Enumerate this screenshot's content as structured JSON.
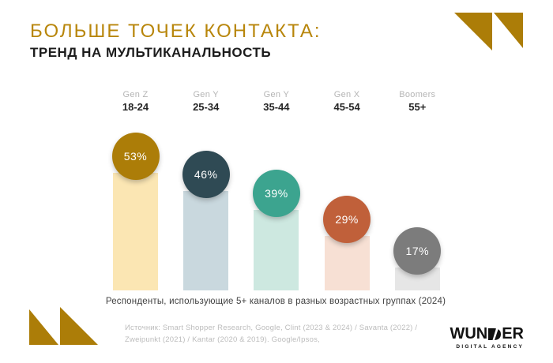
{
  "header": {
    "title": "БОЛЬШЕ ТОЧЕК КОНТАКТА:",
    "subtitle": "ТРЕНД НА МУЛЬТИКАНАЛЬНОСТЬ"
  },
  "chart_data": {
    "type": "bar",
    "title": "БОЛЬШЕ ТОЧЕК КОНТАКТА: ТРЕНД НА МУЛЬТИКАНАЛЬНОСТЬ",
    "categories": [
      "Gen Z 18-24",
      "Gen Y 25-34",
      "Gen Y 35-44",
      "Gen X 45-54",
      "Boomers 55+"
    ],
    "values": [
      53,
      46,
      39,
      29,
      17
    ],
    "unit": "%",
    "ylim": [
      0,
      60
    ],
    "grid": false,
    "legend": false,
    "columns": [
      {
        "generation": "Gen Z",
        "age": "18-24",
        "value": 53,
        "label": "53%",
        "circle_color": "#AC7D08",
        "bar_color": "#FBE6B3"
      },
      {
        "generation": "Gen Y",
        "age": "25-34",
        "value": 46,
        "label": "46%",
        "circle_color": "#2F4A54",
        "bar_color": "#C9D8DE"
      },
      {
        "generation": "Gen Y",
        "age": "35-44",
        "value": 39,
        "label": "39%",
        "circle_color": "#3CA48F",
        "bar_color": "#CDE8E0"
      },
      {
        "generation": "Gen X",
        "age": "45-54",
        "value": 29,
        "label": "29%",
        "circle_color": "#C0603A",
        "bar_color": "#F7E0D4"
      },
      {
        "generation": "Boomers",
        "age": "55+",
        "value": 17,
        "label": "17%",
        "circle_color": "#7C7C7C",
        "bar_color": "#E6E6E6"
      }
    ],
    "caption": "Респонденты, использующие 5+ каналов в разных возрастных группах (2024)"
  },
  "footer": {
    "source_line1": "Источник: Smart Shopper Research, Google, Clint (2023 & 2024) / Savanta (2022) /",
    "source_line2": "Zweipunkt (2021) / Kantar (2020 & 2019). Google/Ipsos,"
  },
  "logo": {
    "word_left": "WUN",
    "word_right": "ER",
    "tagline": "DIGITAL AGENCY"
  },
  "theme": {
    "accent_gold": "#B8860B",
    "background": "#FFFFFF",
    "text_dark": "#1C1C1C",
    "text_gray": "#B5B5B5"
  }
}
